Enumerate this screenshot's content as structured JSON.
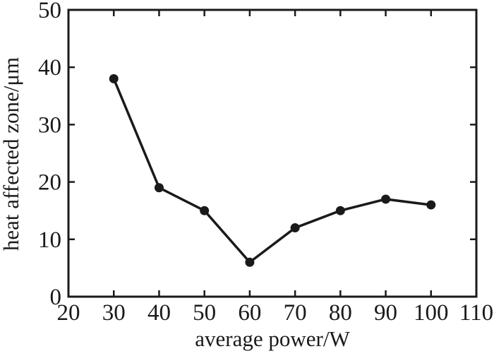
{
  "figure": {
    "background_color": "#ffffff",
    "ink_color": "#1a1a1a"
  },
  "chart_data": {
    "type": "line",
    "title": "",
    "xlabel": "average power/W",
    "ylabel": "heat affected zone/μm",
    "x": [
      30,
      40,
      50,
      60,
      70,
      80,
      90,
      100
    ],
    "y": [
      38,
      19,
      15,
      6,
      12,
      15,
      17,
      16
    ],
    "xlim": [
      20,
      110
    ],
    "ylim": [
      0,
      50
    ],
    "xticks": [
      20,
      30,
      40,
      50,
      60,
      70,
      80,
      90,
      100,
      110
    ],
    "yticks": [
      0,
      10,
      20,
      30,
      40,
      50
    ],
    "grid": false,
    "legend": "none",
    "marker": "filled-circle",
    "line_color": "#1a1a1a",
    "marker_color": "#1a1a1a",
    "tick_style": "inward-all-four-sides"
  }
}
